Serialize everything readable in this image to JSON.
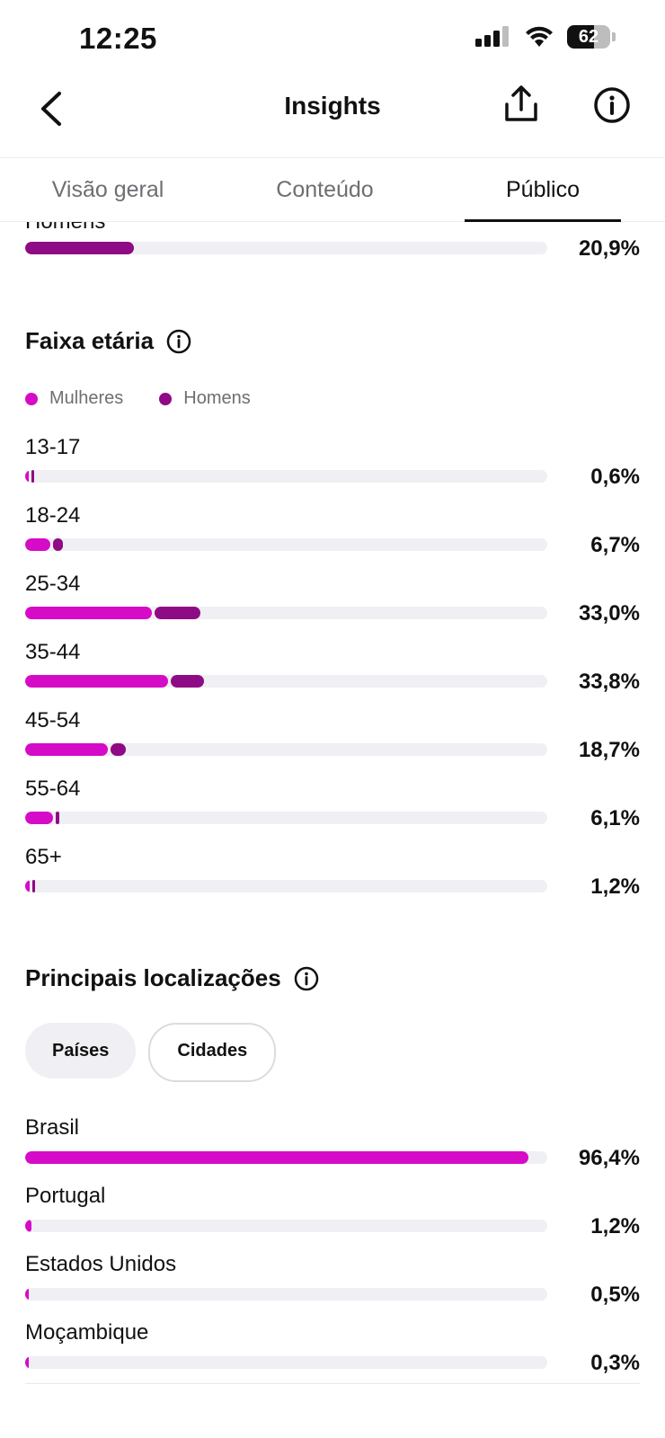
{
  "status_bar": {
    "time": "12:25",
    "battery": "62",
    "battery_level": 0.62
  },
  "header": {
    "title": "Insights"
  },
  "tabs": [
    {
      "label": "Visão geral",
      "active": false
    },
    {
      "label": "Conteúdo",
      "active": false
    },
    {
      "label": "Público",
      "active": true
    }
  ],
  "gender": {
    "partial_row": {
      "label": "Homens",
      "value_percent": 20.9,
      "pct": "20,9%"
    }
  },
  "age": {
    "title": "Faixa etária",
    "legend": {
      "women": "Mulheres",
      "men": "Homens"
    },
    "rows": [
      {
        "label": "13-17",
        "women": 0.4,
        "men": 0.2,
        "pct": "0,6%"
      },
      {
        "label": "18-24",
        "women": 4.8,
        "men": 1.9,
        "pct": "6,7%"
      },
      {
        "label": "25-34",
        "women": 24.3,
        "men": 8.7,
        "pct": "33,0%"
      },
      {
        "label": "35-44",
        "women": 27.3,
        "men": 6.5,
        "pct": "33,8%"
      },
      {
        "label": "45-54",
        "women": 15.9,
        "men": 2.8,
        "pct": "18,7%"
      },
      {
        "label": "55-64",
        "women": 5.4,
        "men": 0.7,
        "pct": "6,1%"
      },
      {
        "label": "65+",
        "women": 0.8,
        "men": 0.4,
        "pct": "1,2%"
      }
    ]
  },
  "locations": {
    "title": "Principais localizações",
    "chips": [
      {
        "label": "Países",
        "active": true
      },
      {
        "label": "Cidades",
        "active": false
      }
    ],
    "rows": [
      {
        "label": "Brasil",
        "value": 96.4,
        "pct": "96,4%"
      },
      {
        "label": "Portugal",
        "value": 1.2,
        "pct": "1,2%"
      },
      {
        "label": "Estados Unidos",
        "value": 0.5,
        "pct": "0,5%"
      },
      {
        "label": "Moçambique",
        "value": 0.3,
        "pct": "0,3%"
      }
    ]
  },
  "colors": {
    "women": "#d60bc7",
    "men": "#8f0a85",
    "track": "#efeff4"
  }
}
